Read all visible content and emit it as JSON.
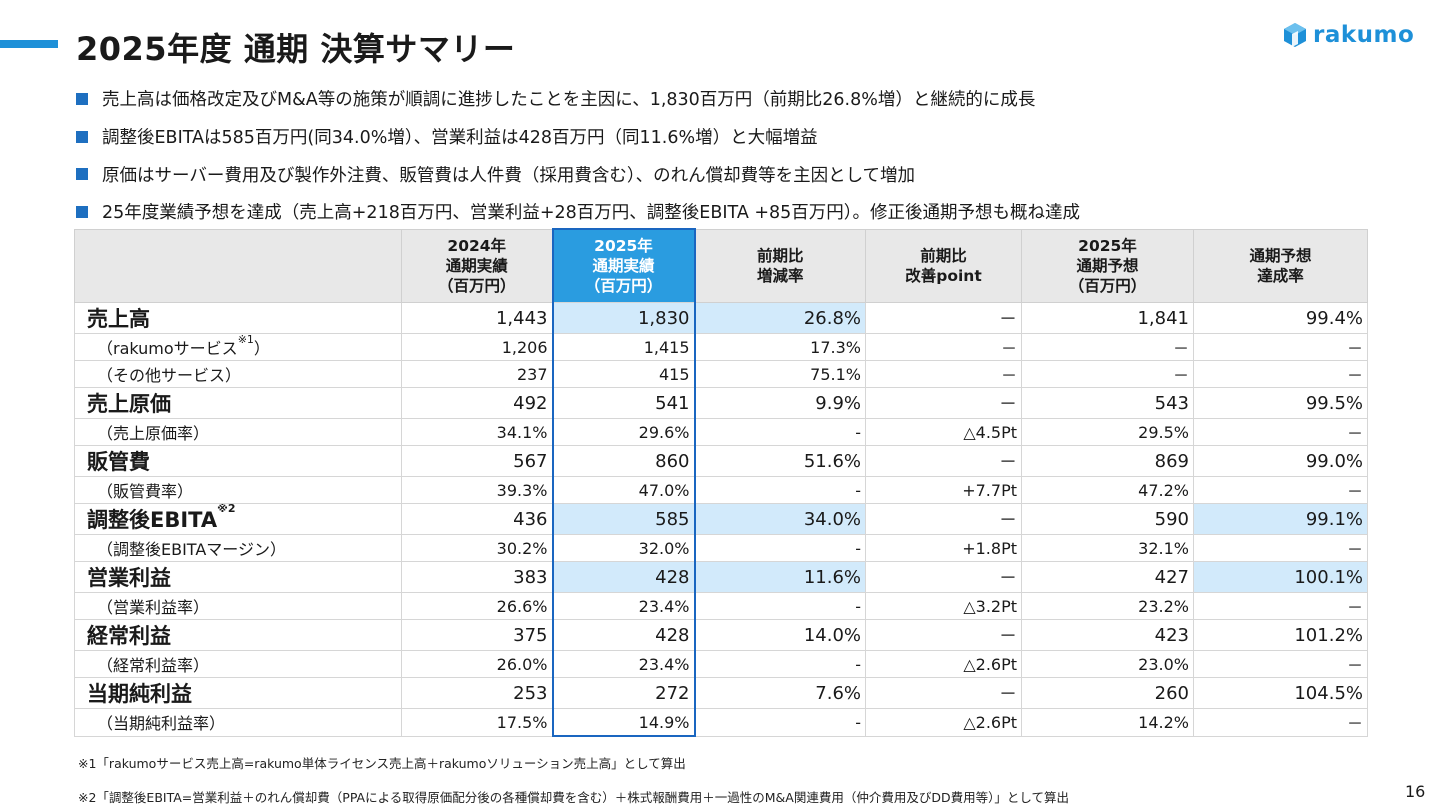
{
  "header": {
    "title": "2025年度 通期 決算サマリー",
    "logo_text": "rakumo",
    "accent_color": "#1e90d8"
  },
  "bullets": [
    "売上高は価格改定及びM&A等の施策が順調に進捗したことを主因に、1,830百万円（前期比26.8%増）と継続的に成長",
    "調整後EBITAは585百万円(同34.0%増）、営業利益は428百万円（同11.6%増）と大幅増益",
    "原価はサーバー費用及び製作外注費、販管費は人件費（採用費含む）、のれん償却費等を主因として増加",
    "25年度業績予想を達成（売上高+218百万円、営業利益+28百万円、調整後EBITA +85百万円）。修正後通期予想も概ね達成"
  ],
  "table": {
    "headers": [
      "",
      "2024年\n通期実績\n（百万円）",
      "2025年\n通期実績\n（百万円）",
      "前期比\n増減率",
      "前期比\n改善point",
      "2025年\n通期予想\n（百万円）",
      "通期予想\n達成率"
    ],
    "rows": [
      {
        "label": "売上高",
        "sup": "",
        "cells": [
          "1,443",
          "1,830",
          "26.8%",
          "－",
          "1,841",
          "99.4%"
        ]
      },
      {
        "label": "（rakumoサービス",
        "sup": "※1",
        "suffix": "）",
        "cells": [
          "1,206",
          "1,415",
          "17.3%",
          "－",
          "－",
          "－"
        ]
      },
      {
        "label": "（その他サービス）",
        "sup": "",
        "cells": [
          "237",
          "415",
          "75.1%",
          "－",
          "－",
          "－"
        ]
      },
      {
        "label": "売上原価",
        "sup": "",
        "cells": [
          "492",
          "541",
          "9.9%",
          "－",
          "543",
          "99.5%"
        ]
      },
      {
        "label": "（売上原価率）",
        "sup": "",
        "cells": [
          "34.1%",
          "29.6%",
          "-",
          "△4.5Pt",
          "29.5%",
          "－"
        ]
      },
      {
        "label": "販管費",
        "sup": "",
        "cells": [
          "567",
          "860",
          "51.6%",
          "－",
          "869",
          "99.0%"
        ]
      },
      {
        "label": "（販管費率）",
        "sup": "",
        "cells": [
          "39.3%",
          "47.0%",
          "-",
          "+7.7Pt",
          "47.2%",
          "－"
        ]
      },
      {
        "label": "調整後EBITA",
        "sup": "※2",
        "cells": [
          "436",
          "585",
          "34.0%",
          "－",
          "590",
          "99.1%"
        ]
      },
      {
        "label": "（調整後EBITAマージン）",
        "sup": "",
        "cells": [
          "30.2%",
          "32.0%",
          "-",
          "+1.8Pt",
          "32.1%",
          "－"
        ]
      },
      {
        "label": "営業利益",
        "sup": "",
        "cells": [
          "383",
          "428",
          "11.6%",
          "－",
          "427",
          "100.1%"
        ]
      },
      {
        "label": "（営業利益率）",
        "sup": "",
        "cells": [
          "26.6%",
          "23.4%",
          "-",
          "△3.2Pt",
          "23.2%",
          "－"
        ]
      },
      {
        "label": "経常利益",
        "sup": "",
        "cells": [
          "375",
          "428",
          "14.0%",
          "－",
          "423",
          "101.2%"
        ]
      },
      {
        "label": "（経常利益率）",
        "sup": "",
        "cells": [
          "26.0%",
          "23.4%",
          "-",
          "△2.6Pt",
          "23.0%",
          "－"
        ]
      },
      {
        "label": "当期純利益",
        "sup": "",
        "cells": [
          "253",
          "272",
          "7.6%",
          "－",
          "260",
          "104.5%"
        ]
      },
      {
        "label": "（当期純利益率）",
        "sup": "",
        "cells": [
          "17.5%",
          "14.9%",
          "-",
          "△2.6Pt",
          "14.2%",
          "－"
        ]
      }
    ]
  },
  "notes": [
    "※1「rakumoサービス売上高=rakumo単体ライセンス売上高＋rakumoソリューション売上高」として算出",
    "※2「調整後EBITA=営業利益＋のれん償却費（PPAによる取得原価配分後の各種償却費を含む）＋株式報酬費用＋一過性のM&A関連費用（仲介費用及びDD費用等）」として算出"
  ],
  "page_number": "16",
  "colors": {
    "header_highlight": "#2a9ce0",
    "cell_highlight": "#d2eafb",
    "bullet": "#1e6fc0"
  }
}
